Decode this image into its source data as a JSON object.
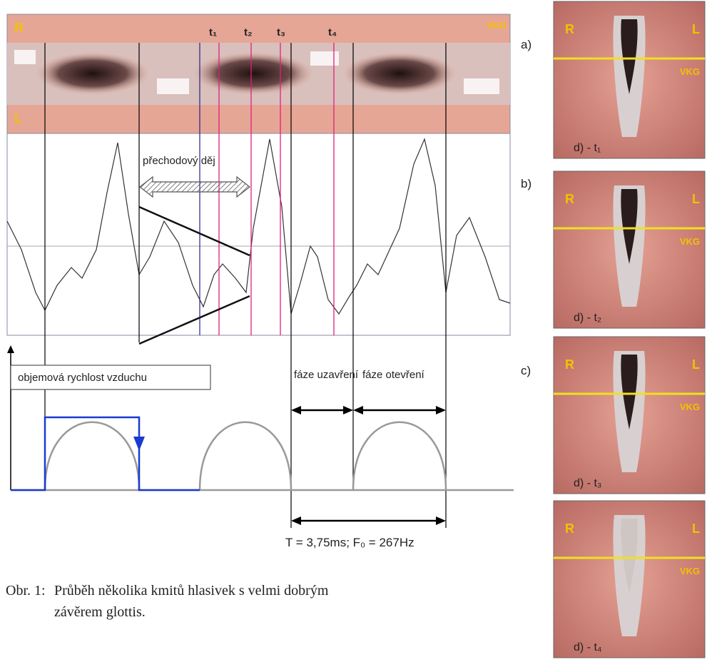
{
  "strip": {
    "r": "R",
    "l": "L",
    "vkg": "VKG"
  },
  "panel_labels": {
    "a": "a)",
    "b": "b)",
    "c": "c)"
  },
  "time_marks": [
    "t₁",
    "t₂",
    "t₃",
    "t₄"
  ],
  "annotations": {
    "transition": "přechodový děj",
    "airflow": "objemová rychlost vzduchu",
    "closing": "fáze uzavření",
    "opening": "fáze otevření",
    "period": "T = 3,75ms;  F₀ = 267Hz"
  },
  "caption": {
    "label": "Obr. 1:",
    "text": "Průběh několika kmitů hlasivek s velmi dobrým",
    "text2": "závěrem glottis."
  },
  "frames": [
    {
      "r": "R",
      "l": "L",
      "vkg": "VKG",
      "label": "d) - t₁"
    },
    {
      "r": "R",
      "l": "L",
      "vkg": "VKG",
      "label": "d) - t₂"
    },
    {
      "r": "R",
      "l": "L",
      "vkg": "VKG",
      "label": "d) - t₃"
    },
    {
      "r": "R",
      "l": "L",
      "vkg": "VKG",
      "label": "d) - t₄"
    }
  ]
}
